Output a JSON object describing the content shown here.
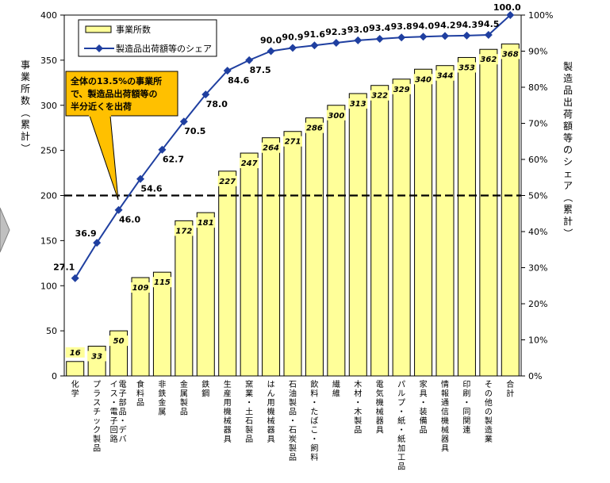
{
  "chart_data": {
    "type": "bar",
    "categories": [
      "化学",
      "プラスチック製品",
      "電子部品・デバイス・電子回路",
      "食料品",
      "非鉄金属",
      "金属製品",
      "鉄鋼",
      "生産用機械器具",
      "窯業・土石製品",
      "はん用機械器具",
      "石油製品・石炭製品",
      "飲料・たばこ・飼料",
      "繊維",
      "木材・木製品",
      "電気機械器具",
      "パルプ・紙・紙加工品",
      "家具・装備品",
      "情報通信機械器具",
      "印刷・同関連",
      "その他の製造業",
      "合計"
    ],
    "series": [
      {
        "name": "事業所数",
        "type": "bar",
        "axis": "left",
        "color": "#FFFF99",
        "values": [
          16,
          33,
          50,
          109,
          115,
          172,
          181,
          227,
          247,
          264,
          271,
          286,
          300,
          313,
          322,
          329,
          340,
          344,
          353,
          362,
          368
        ],
        "labels": [
          "16",
          "33",
          "50",
          "109",
          "115",
          "172",
          "181",
          "227",
          "247",
          "264",
          "271",
          "286",
          "300",
          "313",
          "322",
          "329",
          "340",
          "344",
          "353",
          "362",
          "368"
        ]
      },
      {
        "name": "製造品出荷額等のシェア",
        "type": "line",
        "axis": "right",
        "color": "#1F3FA0",
        "values": [
          27.1,
          36.9,
          46.0,
          54.6,
          62.7,
          70.5,
          78.0,
          84.6,
          87.5,
          90.0,
          90.9,
          91.6,
          92.3,
          93.0,
          93.4,
          93.8,
          94.0,
          94.2,
          94.3,
          94.5,
          100.0
        ],
        "labels": [
          "27.1",
          "36.9",
          "46.0",
          "54.6",
          "62.7",
          "70.5",
          "78.0",
          "84.6",
          "87.5",
          "90.0",
          "90.9",
          "91.6",
          "92.3",
          "93.0",
          "93.4",
          "93.8",
          "94.0",
          "94.2",
          "94.3",
          "94.5",
          "100.0"
        ]
      }
    ],
    "ylabel_left": "事業所数（累計）",
    "ylabel_right": "製造品出荷額等のシェア（累計）",
    "ylim_left": [
      0,
      400
    ],
    "ylim_right": [
      0,
      100
    ],
    "yticks_left": [
      "0",
      "50",
      "100",
      "150",
      "200",
      "250",
      "300",
      "350",
      "400"
    ],
    "yticks_right": [
      "0%",
      "10%",
      "20%",
      "30%",
      "40%",
      "50%",
      "60%",
      "70%",
      "80%",
      "90%",
      "100%"
    ],
    "reference_line": {
      "axis": "right",
      "value": 50,
      "style": "dashed"
    },
    "annotation": {
      "lines": [
        "全体の13.5%の事業所",
        "で、製造品出荷額等の",
        "半分近くを出荷"
      ],
      "fill": "#FFC000"
    },
    "legend": {
      "placement": "top-left"
    }
  }
}
